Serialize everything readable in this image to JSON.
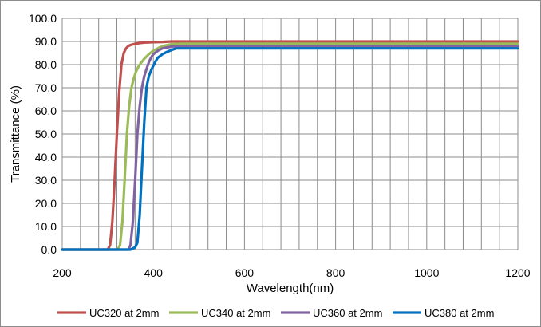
{
  "chart_data": {
    "type": "line",
    "title": "",
    "xlabel": "Wavelength(nm)",
    "ylabel": "Transmittance (%)",
    "xlim": [
      200,
      1200
    ],
    "ylim": [
      0,
      100
    ],
    "x_ticks": [
      "200",
      "400",
      "600",
      "800",
      "1000",
      "1200"
    ],
    "y_ticks": [
      "0.0",
      "10.0",
      "20.0",
      "30.0",
      "40.0",
      "50.0",
      "60.0",
      "70.0",
      "80.0",
      "90.0",
      "100.0"
    ],
    "grid": true,
    "legend_position": "bottom",
    "series": [
      {
        "name": "UC320 at 2mm",
        "color": "#c0504d",
        "x": [
          200,
          300,
          305,
          310,
          315,
          320,
          325,
          330,
          335,
          340,
          345,
          350,
          360,
          370,
          380,
          400,
          420,
          440,
          1200
        ],
        "y": [
          0,
          0,
          2,
          12,
          30,
          50,
          68,
          80,
          85,
          87,
          88,
          88.5,
          89,
          89.3,
          89.5,
          89.7,
          89.8,
          90,
          90
        ]
      },
      {
        "name": "UC340 at 2mm",
        "color": "#9bbb59",
        "x": [
          200,
          322,
          327,
          332,
          337,
          342,
          347,
          352,
          357,
          362,
          367,
          372,
          380,
          390,
          400,
          420,
          440,
          460,
          1200
        ],
        "y": [
          0,
          0,
          2,
          12,
          30,
          50,
          62,
          70,
          74,
          77,
          79,
          80.5,
          82.5,
          84.5,
          86,
          88,
          88.8,
          89,
          89
        ]
      },
      {
        "name": "UC360 at 2mm",
        "color": "#8064a2",
        "x": [
          200,
          345,
          350,
          355,
          360,
          365,
          370,
          375,
          380,
          385,
          390,
          395,
          400,
          410,
          420,
          440,
          460,
          1200
        ],
        "y": [
          0,
          0,
          2,
          12,
          30,
          50,
          62,
          70,
          75,
          78,
          81,
          83,
          84.5,
          86,
          87,
          87.8,
          88,
          88
        ]
      },
      {
        "name": "UC380 at 2mm",
        "color": "#0070c0",
        "x": [
          200,
          350,
          355,
          360,
          365,
          370,
          375,
          380,
          385,
          390,
          395,
          400,
          405,
          410,
          420,
          430,
          440,
          450,
          1200
        ],
        "y": [
          0,
          0,
          0.5,
          1,
          3,
          15,
          35,
          55,
          70,
          75,
          77.5,
          79.5,
          81.5,
          83,
          84.5,
          85.5,
          86.3,
          87,
          87
        ]
      }
    ]
  }
}
